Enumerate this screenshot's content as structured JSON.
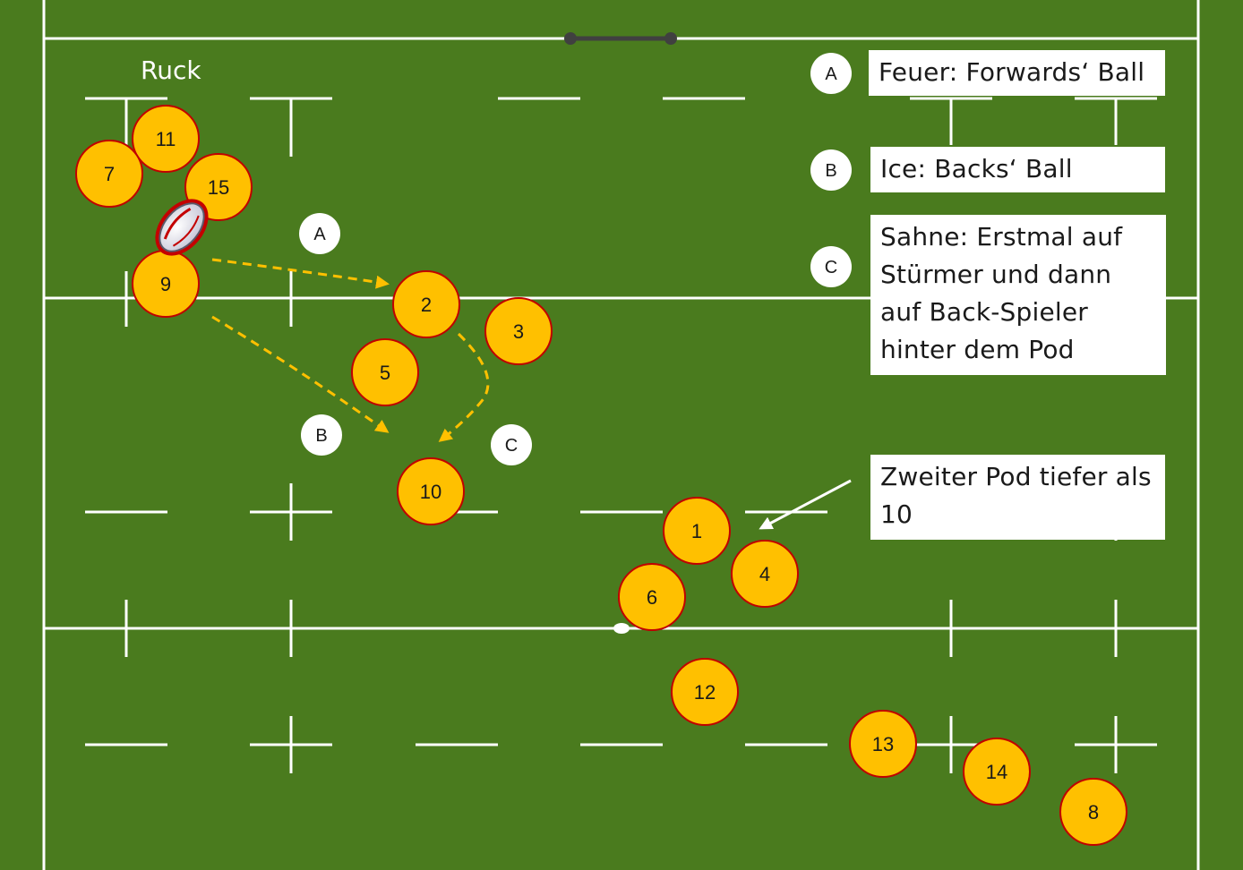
{
  "ruck_label": "Ruck",
  "legend": {
    "a": {
      "letter": "A",
      "text": "Feuer: Forwards‘ Ball"
    },
    "b": {
      "letter": "B",
      "text": "Ice: Backs‘ Ball"
    },
    "c": {
      "letter": "C",
      "text": "Sahne: Erstmal auf Stürmer und dann auf Back-Spieler hinter dem Pod"
    }
  },
  "note": "Zweiter Pod tiefer als 10",
  "field_markers": [
    "A",
    "B",
    "C"
  ],
  "players": [
    "11",
    "7",
    "15",
    "9",
    "2",
    "3",
    "5",
    "10",
    "1",
    "4",
    "6",
    "12",
    "13",
    "14",
    "8"
  ],
  "colors": {
    "pitch": "#4a7b1e",
    "lines": "#ffffff",
    "player_fill": "#ffc000",
    "player_stroke": "#c00000",
    "pass_arrow": "#ffc000",
    "post_bar": "#404040"
  },
  "icons": [
    "rugby-ball-icon",
    "arrow-icon"
  ]
}
